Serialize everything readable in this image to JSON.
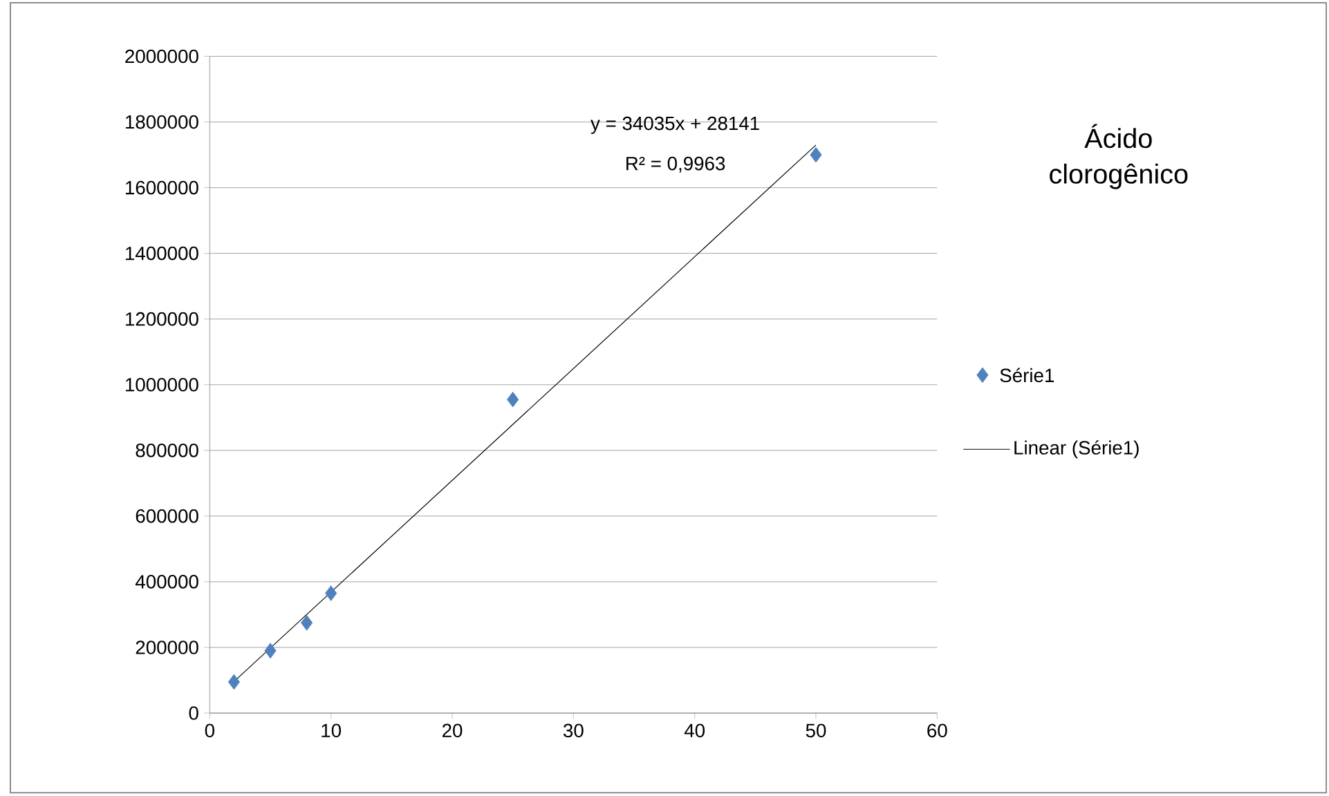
{
  "chart_data": {
    "type": "scatter",
    "title": "Ácido clorogênico",
    "x": [
      2,
      5,
      8,
      10,
      25,
      50
    ],
    "series": [
      {
        "name": "Série1",
        "color": "#4f81bd",
        "values": [
          95000,
          190000,
          275000,
          365000,
          955000,
          1700000
        ],
        "marker": "diamond"
      },
      {
        "type": "line",
        "name": "Linear (Série1)",
        "color": "#000000",
        "x": [
          2,
          50
        ],
        "values": [
          96000,
          1730000
        ],
        "marker": "none"
      }
    ],
    "xlim": [
      0,
      60
    ],
    "ylim": [
      0,
      2000000
    ],
    "xticks": [
      0,
      10,
      20,
      30,
      40,
      50,
      60
    ],
    "yticks": [
      0,
      200000,
      400000,
      600000,
      800000,
      1000000,
      1200000,
      1400000,
      1600000,
      1800000,
      2000000
    ],
    "grid": "y",
    "legend": "right",
    "annotations": [
      "y = 34035x + 28141",
      "R² = 0,9963"
    ]
  }
}
